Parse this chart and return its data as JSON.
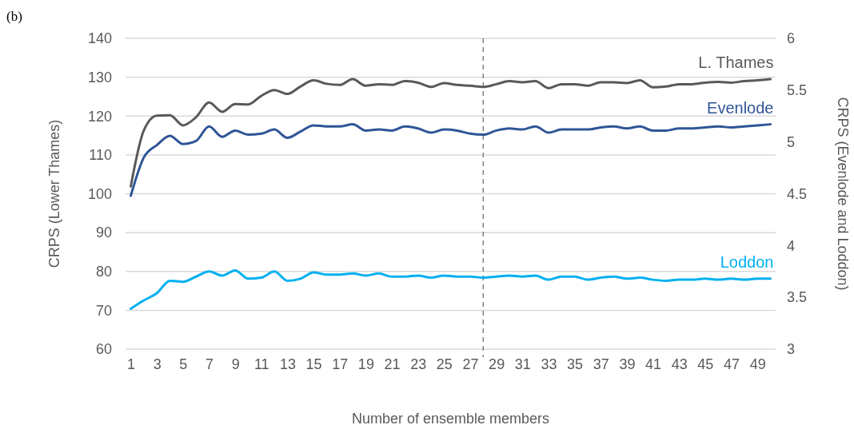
{
  "chart_data": {
    "type": "line",
    "title": "(b)",
    "xlabel": "Number of ensemble members",
    "ylabel": "CRPS (Lower Thames)",
    "y2label": "CRPS (Evenlode and Loddon)",
    "x": [
      1,
      2,
      3,
      4,
      5,
      6,
      7,
      8,
      9,
      10,
      11,
      12,
      13,
      14,
      15,
      16,
      17,
      18,
      19,
      20,
      21,
      22,
      23,
      24,
      25,
      26,
      27,
      28,
      29,
      30,
      31,
      32,
      33,
      34,
      35,
      36,
      37,
      38,
      39,
      40,
      41,
      42,
      43,
      44,
      45,
      46,
      47,
      48,
      49,
      50
    ],
    "xlim": [
      0.6,
      50.4
    ],
    "xticks": [
      1,
      3,
      5,
      7,
      9,
      11,
      13,
      15,
      17,
      19,
      21,
      23,
      25,
      27,
      29,
      31,
      33,
      35,
      37,
      39,
      41,
      43,
      45,
      47,
      49
    ],
    "ylim": [
      60,
      140
    ],
    "yticks": [
      60,
      70,
      80,
      90,
      100,
      110,
      120,
      130,
      140
    ],
    "y2lim": [
      3,
      6
    ],
    "y2ticks": [
      3,
      3.5,
      4,
      4.5,
      5,
      5.5,
      6
    ],
    "grid": "y",
    "legend": false,
    "marker": "none",
    "line_style": "solid",
    "ref_lines": [
      {
        "axis": "x",
        "value": 28,
        "color": "#808080",
        "line_style": "dashed"
      }
    ],
    "series": [
      {
        "name": "L. Thames",
        "color": "#595959",
        "values": [
          101.9,
          116.3,
          120.1,
          120.2,
          117.6,
          119.7,
          123.5,
          121.1,
          123.1,
          123,
          125.2,
          126.7,
          125.7,
          127.6,
          129.2,
          128.3,
          128,
          129.5,
          127.8,
          128.2,
          128,
          129,
          128.6,
          127.5,
          128.5,
          128,
          127.8,
          127.5,
          128.2,
          129,
          128.7,
          129,
          127.2,
          128.2,
          128.2,
          127.8,
          128.7,
          128.7,
          128.5,
          129.2,
          127.4,
          127.6,
          128.2,
          128.2,
          128.6,
          128.8,
          128.6,
          129,
          129.2,
          129.5
        ]
      },
      {
        "name": "Evenlode",
        "color": "#2f5597",
        "axis": "y2",
        "values": [
          4.48,
          4.85,
          4.97,
          5.06,
          4.98,
          5.01,
          5.15,
          5.05,
          5.11,
          5.07,
          5.08,
          5.12,
          5.04,
          5.1,
          5.16,
          5.15,
          5.15,
          5.17,
          5.11,
          5.12,
          5.11,
          5.15,
          5.13,
          5.09,
          5.12,
          5.11,
          5.08,
          5.07,
          5.11,
          5.13,
          5.12,
          5.15,
          5.09,
          5.12,
          5.12,
          5.12,
          5.14,
          5.15,
          5.13,
          5.15,
          5.11,
          5.11,
          5.13,
          5.13,
          5.14,
          5.15,
          5.14,
          5.15,
          5.16,
          5.17
        ]
      },
      {
        "name": "Loddon",
        "color": "#00b0f0",
        "axis": "y2",
        "values": [
          3.39,
          3.47,
          3.54,
          3.66,
          3.65,
          3.7,
          3.75,
          3.71,
          3.76,
          3.68,
          3.69,
          3.75,
          3.66,
          3.68,
          3.74,
          3.72,
          3.72,
          3.73,
          3.71,
          3.73,
          3.7,
          3.7,
          3.71,
          3.69,
          3.71,
          3.7,
          3.7,
          3.69,
          3.7,
          3.71,
          3.7,
          3.71,
          3.67,
          3.7,
          3.7,
          3.67,
          3.69,
          3.7,
          3.68,
          3.69,
          3.67,
          3.66,
          3.67,
          3.67,
          3.68,
          3.67,
          3.68,
          3.67,
          3.68,
          3.68
        ]
      }
    ]
  }
}
